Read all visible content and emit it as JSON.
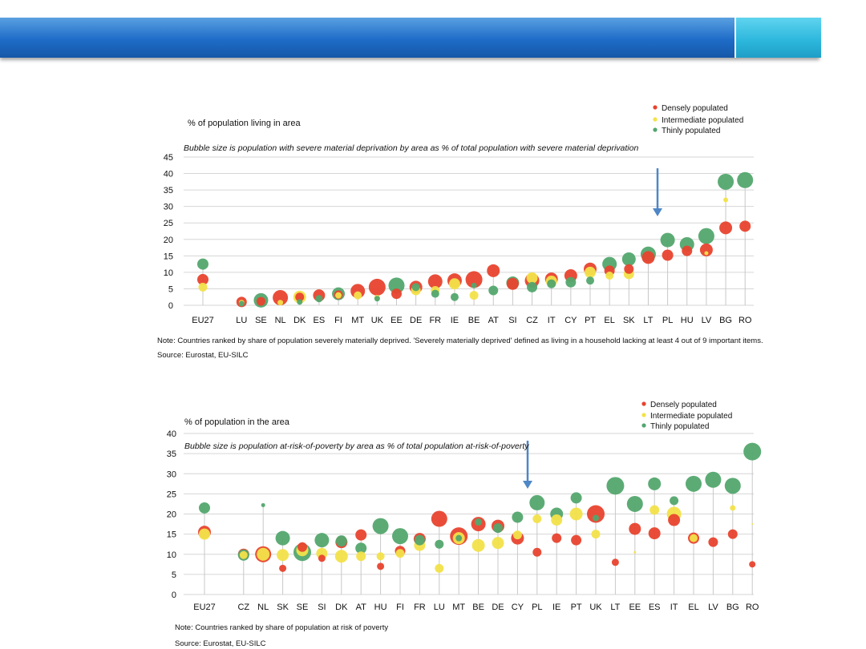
{
  "colors": {
    "dense": "#e8432e",
    "intermediate": "#f2e24a",
    "thin": "#53a66e",
    "arrow": "#4f86c6",
    "grid": "#d6d6d6"
  },
  "chart_data": [
    {
      "type": "scatter",
      "title": "",
      "ylabel": "% of population living in area",
      "subtitle": "Bubble size is population with severe material deprivation by area as % of total population with severe material deprivation",
      "ylim": [
        0,
        45
      ],
      "yticks": [
        0,
        5,
        10,
        15,
        20,
        25,
        30,
        35,
        40,
        45
      ],
      "legend_position": "top-right",
      "categories": [
        "EU27",
        "",
        "LU",
        "SE",
        "NL",
        "DK",
        "ES",
        "FI",
        "MT",
        "UK",
        "EE",
        "DE",
        "FR",
        "IE",
        "BE",
        "AT",
        "SI",
        "CZ",
        "IT",
        "CY",
        "PT",
        "EL",
        "SK",
        "LT",
        "PL",
        "HU",
        "LV",
        "BG",
        "RO"
      ],
      "arrow_at": "PL",
      "series": [
        {
          "name": "Densely populated",
          "key": "dense",
          "values": [
            7.8,
            null,
            1.0,
            1.2,
            2.3,
            2.5,
            3.0,
            3.2,
            4.3,
            5.5,
            3.5,
            5.5,
            7.2,
            7.5,
            7.8,
            10.5,
            6.5,
            7.5,
            8.0,
            9.0,
            11.0,
            10.5,
            11.0,
            14.5,
            15.2,
            16.5,
            16.8,
            23.5,
            24.0
          ],
          "sizes": [
            14,
            null,
            13,
            11,
            19,
            11,
            15,
            11,
            18,
            21,
            13,
            16,
            18,
            18,
            21,
            16,
            15,
            18,
            16,
            16,
            16,
            13,
            12,
            16,
            14,
            13,
            16,
            16,
            14
          ]
        },
        {
          "name": "Intermediate populated",
          "key": "intermediate",
          "values": [
            5.5,
            null,
            0.8,
            null,
            0.8,
            2.5,
            null,
            3.0,
            3.0,
            2.3,
            null,
            4.5,
            4.5,
            6.5,
            3.0,
            null,
            null,
            8.3,
            7.3,
            null,
            10.0,
            9.0,
            9.5,
            null,
            null,
            null,
            15.8,
            32.0,
            null
          ],
          "sizes": [
            11,
            null,
            7,
            null,
            7,
            16,
            null,
            8,
            10,
            7,
            null,
            12,
            11,
            14,
            11,
            null,
            null,
            14,
            14,
            null,
            14,
            10,
            13,
            null,
            null,
            null,
            5,
            6,
            null
          ]
        },
        {
          "name": "Thinly populated",
          "key": "thin",
          "values": [
            12.5,
            null,
            0.5,
            1.5,
            null,
            1.0,
            2.0,
            3.5,
            null,
            2.0,
            6.0,
            5.5,
            3.5,
            2.5,
            6.0,
            4.5,
            6.8,
            5.5,
            6.5,
            7.0,
            7.5,
            12.5,
            14.0,
            15.5,
            19.8,
            18.5,
            21.0,
            37.5,
            38.0
          ],
          "sizes": [
            14,
            null,
            7,
            18,
            null,
            7,
            9,
            16,
            null,
            7,
            20,
            10,
            10,
            10,
            7,
            12,
            16,
            13,
            11,
            13,
            10,
            18,
            17,
            19,
            18,
            18,
            20,
            20,
            20
          ]
        }
      ],
      "note": "Note: Countries ranked by share of population severely materially deprived. 'Severely materially deprived' defined as living in a household lacking at least 4 out of 9 important items.",
      "source": "Source: Eurostat, EU-SILC"
    },
    {
      "type": "scatter",
      "title": "",
      "ylabel": "% of population in the area",
      "subtitle": "Bubble size is population at-risk-of-poverty by area as % of total population at-risk-of-poverty",
      "ylim": [
        0,
        40
      ],
      "yticks": [
        0,
        5,
        10,
        15,
        20,
        25,
        30,
        35,
        40
      ],
      "legend_position": "top-right",
      "categories": [
        "EU27",
        "",
        "CZ",
        "NL",
        "SK",
        "SE",
        "SI",
        "DK",
        "AT",
        "HU",
        "FI",
        "FR",
        "LU",
        "MT",
        "BE",
        "DE",
        "CY",
        "PL",
        "IE",
        "PT",
        "UK",
        "LT",
        "EE",
        "ES",
        "IT",
        "EL",
        "LV",
        "BG",
        "RO"
      ],
      "arrow_at": "PL",
      "series": [
        {
          "name": "Densely populated",
          "key": "dense",
          "values": [
            15.5,
            null,
            10.0,
            10.0,
            6.5,
            11.8,
            9.0,
            13.0,
            14.8,
            7.0,
            10.8,
            13.8,
            18.8,
            14.5,
            17.5,
            17.0,
            14.0,
            10.5,
            14.0,
            13.5,
            20.0,
            8.0,
            16.3,
            15.2,
            18.5,
            14.0,
            13.0,
            15.0,
            7.5
          ],
          "sizes": [
            16,
            null,
            14,
            20,
            9,
            12,
            9,
            15,
            14,
            9,
            13,
            15,
            20,
            22,
            18,
            16,
            16,
            11,
            12,
            13,
            22,
            9,
            15,
            15,
            15,
            14,
            12,
            12,
            8
          ]
        },
        {
          "name": "Intermediate populated",
          "key": "intermediate",
          "values": [
            15.0,
            null,
            9.8,
            10.0,
            9.8,
            11.0,
            10.2,
            9.5,
            9.5,
            9.5,
            10.2,
            12.2,
            6.5,
            14.0,
            12.2,
            12.8,
            14.8,
            18.8,
            18.5,
            20.0,
            15.0,
            null,
            10.5,
            21.0,
            20.0,
            14.0,
            null,
            21.5,
            17.5
          ],
          "sizes": [
            14,
            null,
            10,
            16,
            15,
            15,
            14,
            16,
            12,
            10,
            11,
            14,
            11,
            15,
            16,
            15,
            11,
            11,
            14,
            16,
            11,
            null,
            3,
            12,
            18,
            10,
            null,
            7,
            2
          ]
        },
        {
          "name": "Thinly populated",
          "key": "thin",
          "values": [
            21.5,
            null,
            9.8,
            22.2,
            14.0,
            10.5,
            13.5,
            13.3,
            11.5,
            17.0,
            14.5,
            13.5,
            12.5,
            14.0,
            18.0,
            16.5,
            19.2,
            22.8,
            20.0,
            24.0,
            19.0,
            27.0,
            22.5,
            27.5,
            23.3,
            27.5,
            28.5,
            27.0,
            35.5
          ],
          "sizes": [
            14,
            null,
            14,
            5,
            18,
            22,
            18,
            14,
            14,
            20,
            20,
            13,
            11,
            8,
            9,
            12,
            14,
            19,
            16,
            14,
            8,
            22,
            20,
            16,
            11,
            20,
            20,
            20,
            22
          ]
        }
      ],
      "note": "Note: Countries ranked by share of population at risk of poverty",
      "source": "Source: Eurostat, EU-SILC"
    }
  ]
}
